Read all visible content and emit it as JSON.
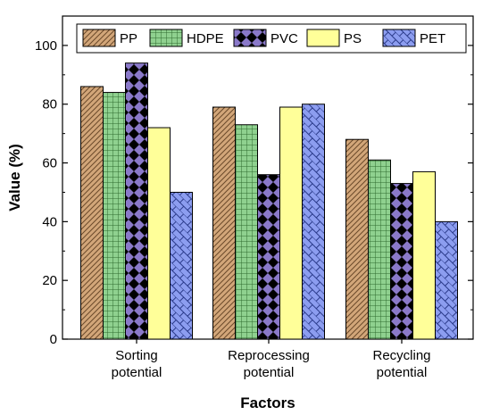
{
  "chart_data": {
    "type": "bar",
    "categories": [
      [
        "Sorting",
        "potential"
      ],
      [
        "Reprocessing",
        "potential"
      ],
      [
        "Recycling",
        "potential"
      ]
    ],
    "series": [
      {
        "name": "PP",
        "values": [
          86,
          79,
          68
        ],
        "color": "#d2a679",
        "pattern": "diagonal-hatch"
      },
      {
        "name": "HDPE",
        "values": [
          84,
          73,
          61
        ],
        "color": "#8fd18f",
        "pattern": "grid"
      },
      {
        "name": "PVC",
        "values": [
          94,
          56,
          53
        ],
        "color": "#8a79c9",
        "pattern": "diamond-check"
      },
      {
        "name": "PS",
        "values": [
          72,
          79,
          57
        ],
        "color": "#ffff99",
        "pattern": "solid"
      },
      {
        "name": "PET",
        "values": [
          50,
          80,
          40
        ],
        "color": "#8c9df0",
        "pattern": "brick"
      }
    ],
    "xlabel": "Factors",
    "ylabel": "Value (%)",
    "ylim": [
      0,
      110
    ],
    "yticks": [
      0,
      20,
      40,
      60,
      80,
      100
    ],
    "grid": false,
    "legend_position": "top"
  }
}
